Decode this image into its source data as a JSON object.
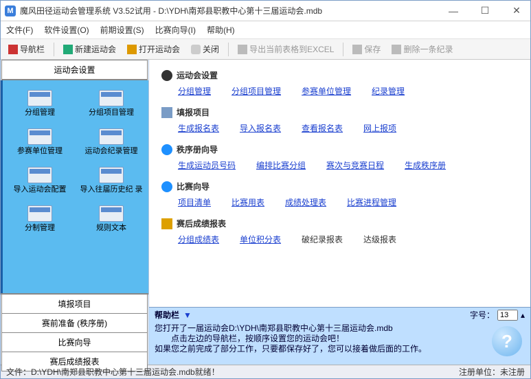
{
  "window": {
    "title": "魔风田径运动会管理系统 V3.52试用 - D:\\YDH\\南郑县职教中心第十三届运动会.mdb",
    "min": "—",
    "max": "☐",
    "close": "✕"
  },
  "menu": {
    "file": "文件(F)",
    "soft": "软件设置(O)",
    "pre": "前期设置(S)",
    "wiz": "比赛向导(I)",
    "help": "帮助(H)"
  },
  "toolbar": {
    "nav": "导航栏",
    "new": "新建运动会",
    "open": "打开运动会",
    "close": "关闭",
    "export": "导出当前表格到EXCEL",
    "save": "保存",
    "del": "删除一条纪录"
  },
  "sidebar": {
    "header": "运动会设置",
    "items": [
      {
        "label": "分组管理"
      },
      {
        "label": "分组项目管理"
      },
      {
        "label": "参赛单位管理"
      },
      {
        "label": "运动会纪录管理"
      },
      {
        "label": "导入运动会配置"
      },
      {
        "label": "导入往届历史纪\n录"
      },
      {
        "label": "分制管理"
      },
      {
        "label": "规则文本"
      }
    ],
    "list": [
      "填报项目",
      "赛前准备 (秩序册)",
      "比赛向导",
      "赛后成绩报表"
    ]
  },
  "sections": [
    {
      "icon": "sic-set",
      "title": "运动会设置",
      "links": [
        {
          "t": "分组管理"
        },
        {
          "t": "分组项目管理"
        },
        {
          "t": "参赛单位管理"
        },
        {
          "t": "纪录管理"
        }
      ]
    },
    {
      "icon": "sic-form",
      "title": "填报项目",
      "links": [
        {
          "t": "生成报名表"
        },
        {
          "t": "导入报名表"
        },
        {
          "t": "查看报名表"
        },
        {
          "t": "网上报项"
        }
      ]
    },
    {
      "icon": "sic-arrow",
      "title": "秩序册向导",
      "links": [
        {
          "t": "生成运动员号码"
        },
        {
          "t": "编排比赛分组"
        },
        {
          "t": "赛次与竞赛日程"
        },
        {
          "t": "生成秩序册"
        }
      ]
    },
    {
      "icon": "sic-race",
      "title": "比赛向导",
      "links": [
        {
          "t": "项目清单"
        },
        {
          "t": "比赛用表"
        },
        {
          "t": "成绩处理表"
        },
        {
          "t": "比赛进程管理"
        }
      ]
    },
    {
      "icon": "sic-rep",
      "title": "赛后成绩报表",
      "links": [
        {
          "t": "分组成绩表"
        },
        {
          "t": "单位积分表"
        },
        {
          "t": "破纪录报表",
          "plain": true
        },
        {
          "t": "达级报表",
          "plain": true
        }
      ]
    }
  ],
  "help": {
    "title": "帮助栏",
    "fontlabel": "字号：",
    "fontsize": "13",
    "line1": "您打开了一届运动会D:\\YDH\\南郑县职教中心第十三届运动会.mdb",
    "line2": "点击左边的导航栏，按顺序设置您的运动会吧！",
    "line3": "如果您之前完成了部分工作，只要都保存好了，您可以接着做后面的工作。"
  },
  "status": {
    "left": "文件：D:\\YDH\\南郑县职教中心第十三届运动会.mdb就绪！",
    "right": "注册单位：未注册"
  }
}
